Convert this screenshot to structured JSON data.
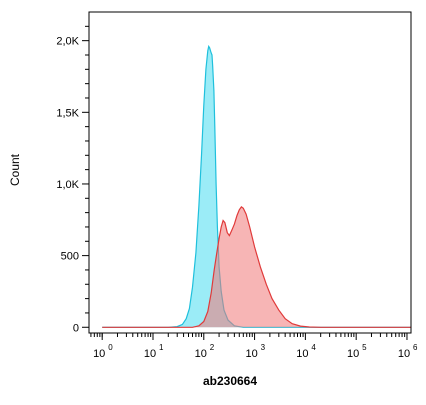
{
  "chart_data": {
    "type": "area",
    "title": "",
    "xlabel": "ab230664",
    "ylabel": "Count",
    "x_scale": "log",
    "xlim": [
      0.55,
      1200000
    ],
    "ylim": [
      -40,
      2200
    ],
    "grid": false,
    "legend": "none",
    "y_ticks": [
      {
        "value": 0,
        "label": "0"
      },
      {
        "value": 500,
        "label": "500"
      },
      {
        "value": 1000,
        "label": "1,0K"
      },
      {
        "value": 1500,
        "label": "1,5K"
      },
      {
        "value": 2000,
        "label": "2,0K"
      }
    ],
    "x_ticks": [
      {
        "value": 1,
        "base": "10",
        "exp": "0"
      },
      {
        "value": 10,
        "base": "10",
        "exp": "1"
      },
      {
        "value": 100,
        "base": "10",
        "exp": "2"
      },
      {
        "value": 1000,
        "base": "10",
        "exp": "3"
      },
      {
        "value": 10000,
        "base": "10",
        "exp": "4"
      },
      {
        "value": 100000,
        "base": "10",
        "exp": "5"
      },
      {
        "value": 1000000,
        "base": "10",
        "exp": "6"
      }
    ],
    "series": [
      {
        "stroke": "#1fc0dc",
        "fill": "#22d4ee",
        "fill_opacity": 0.45,
        "points": [
          [
            1,
            0
          ],
          [
            20,
            0
          ],
          [
            30,
            5
          ],
          [
            38,
            20
          ],
          [
            45,
            60
          ],
          [
            52,
            130
          ],
          [
            60,
            280
          ],
          [
            70,
            520
          ],
          [
            80,
            850
          ],
          [
            90,
            1200
          ],
          [
            100,
            1550
          ],
          [
            110,
            1800
          ],
          [
            120,
            1930
          ],
          [
            125,
            1960
          ],
          [
            130,
            1950
          ],
          [
            138,
            1920
          ],
          [
            145,
            1900
          ],
          [
            150,
            1820
          ],
          [
            158,
            1650
          ],
          [
            165,
            1400
          ],
          [
            175,
            1000
          ],
          [
            185,
            700
          ],
          [
            200,
            420
          ],
          [
            220,
            250
          ],
          [
            250,
            120
          ],
          [
            300,
            50
          ],
          [
            400,
            10
          ],
          [
            600,
            0
          ],
          [
            1200000,
            0
          ]
        ]
      },
      {
        "stroke": "#e03a3a",
        "fill": "#f07878",
        "fill_opacity": 0.55,
        "points": [
          [
            1,
            0
          ],
          [
            60,
            0
          ],
          [
            80,
            10
          ],
          [
            100,
            40
          ],
          [
            120,
            110
          ],
          [
            140,
            240
          ],
          [
            160,
            400
          ],
          [
            180,
            520
          ],
          [
            200,
            620
          ],
          [
            220,
            700
          ],
          [
            240,
            745
          ],
          [
            260,
            730
          ],
          [
            290,
            660
          ],
          [
            320,
            640
          ],
          [
            360,
            680
          ],
          [
            400,
            720
          ],
          [
            450,
            780
          ],
          [
            500,
            820
          ],
          [
            550,
            840
          ],
          [
            600,
            830
          ],
          [
            680,
            790
          ],
          [
            800,
            700
          ],
          [
            1000,
            560
          ],
          [
            1300,
            420
          ],
          [
            1700,
            300
          ],
          [
            2200,
            200
          ],
          [
            3000,
            120
          ],
          [
            4000,
            60
          ],
          [
            5500,
            25
          ],
          [
            8000,
            8
          ],
          [
            12000,
            2
          ],
          [
            20000,
            0
          ],
          [
            1200000,
            0
          ]
        ]
      }
    ]
  }
}
